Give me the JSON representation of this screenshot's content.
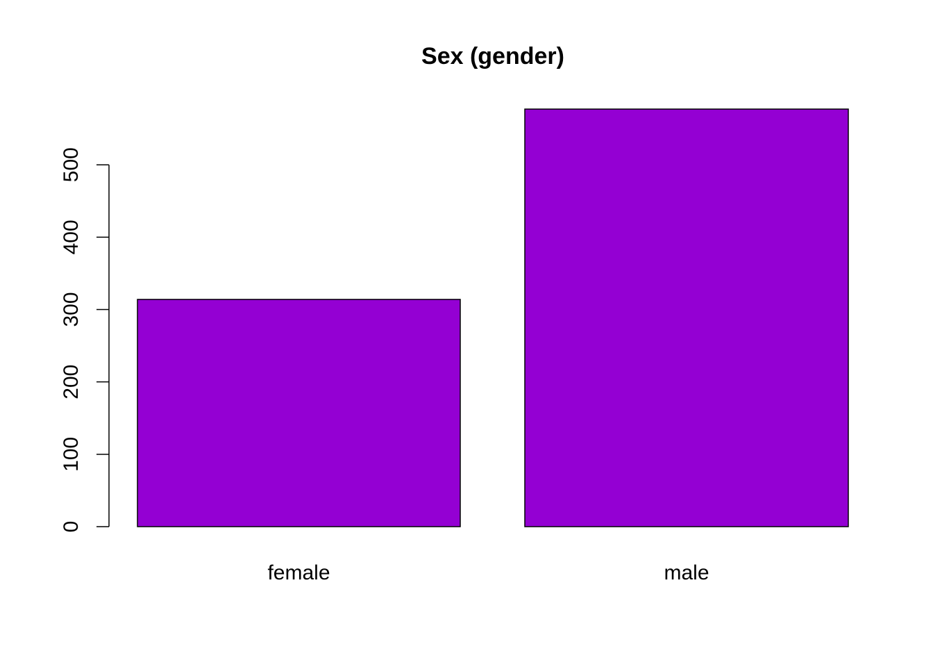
{
  "chart_data": {
    "type": "bar",
    "title": "Sex (gender)",
    "categories": [
      "female",
      "male"
    ],
    "values": [
      314,
      577
    ],
    "xlabel": "",
    "ylabel": "",
    "ylim": [
      0,
      577
    ],
    "yticks": [
      0,
      100,
      200,
      300,
      400,
      500
    ],
    "bar_color": "#9400D3",
    "grid": false
  }
}
